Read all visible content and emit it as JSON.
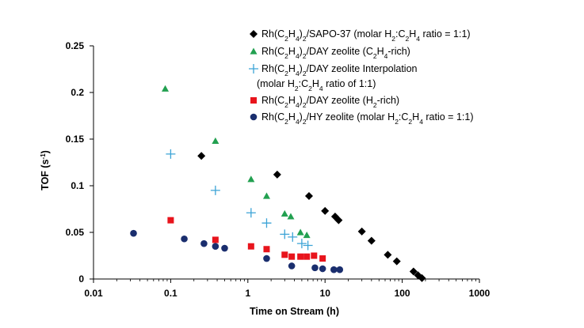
{
  "chart_data": {
    "type": "scatter",
    "title": "",
    "xlabel": "Time on Stream (h)",
    "ylabel": "TOF (s⁻¹)",
    "x_scale": "log",
    "xlim": [
      0.01,
      1000
    ],
    "ylim": [
      0,
      0.25
    ],
    "x_ticks": [
      "0.01",
      "0.1",
      "1",
      "10",
      "100",
      "1000"
    ],
    "y_ticks": [
      "0",
      "0.05",
      "0.1",
      "0.15",
      "0.2",
      "0.25"
    ],
    "grid": false,
    "legend_position": "top-right",
    "series": [
      {
        "name": "Rh(C₂H₄)₂/SAPO-37 (molar H₂:C₂H₄ ratio = 1:1)",
        "marker": "diamond",
        "color": "#000000",
        "points": [
          [
            0.25,
            0.132
          ],
          [
            2.4,
            0.112
          ],
          [
            6.2,
            0.089
          ],
          [
            10,
            0.073
          ],
          [
            13.5,
            0.067
          ],
          [
            15,
            0.063
          ],
          [
            30,
            0.051
          ],
          [
            40,
            0.041
          ],
          [
            65,
            0.026
          ],
          [
            85,
            0.019
          ],
          [
            140,
            0.008
          ],
          [
            160,
            0.004
          ],
          [
            180,
            0.001
          ]
        ]
      },
      {
        "name": "Rh(C₂H₄)₂/DAY zeolite (C₂H₄-rich)",
        "marker": "triangle",
        "color": "#22a050",
        "points": [
          [
            0.085,
            0.204
          ],
          [
            0.38,
            0.148
          ],
          [
            1.1,
            0.107
          ],
          [
            1.75,
            0.089
          ],
          [
            3,
            0.07
          ],
          [
            3.6,
            0.067
          ],
          [
            4.8,
            0.05
          ],
          [
            5.8,
            0.047
          ]
        ]
      },
      {
        "name": "Rh(C₂H₄)₂/DAY zeolite Interpolation",
        "marker": "plus",
        "color": "#3ba3d6",
        "points": [
          [
            0.1,
            0.134
          ],
          [
            0.38,
            0.095
          ],
          [
            1.1,
            0.071
          ],
          [
            1.75,
            0.06
          ],
          [
            3,
            0.048
          ],
          [
            3.8,
            0.045
          ],
          [
            5,
            0.038
          ],
          [
            6,
            0.036
          ]
        ]
      },
      {
        "name": "Rh(C₂H₄)₂/DAY zeolite (H₂-rich)",
        "marker": "square",
        "color": "#e8141c",
        "points": [
          [
            0.1,
            0.063
          ],
          [
            0.38,
            0.042
          ],
          [
            1.1,
            0.035
          ],
          [
            1.75,
            0.032
          ],
          [
            3,
            0.026
          ],
          [
            3.7,
            0.024
          ],
          [
            4.8,
            0.024
          ],
          [
            5.8,
            0.024
          ],
          [
            7.2,
            0.025
          ],
          [
            9.3,
            0.022
          ]
        ]
      },
      {
        "name": "Rh(C₂H₄)₂/HY zeolite (molar H₂:C₂H₄ ratio = 1:1)",
        "marker": "circle",
        "color": "#1a2e6e",
        "points": [
          [
            0.033,
            0.049
          ],
          [
            0.15,
            0.043
          ],
          [
            0.27,
            0.038
          ],
          [
            0.38,
            0.035
          ],
          [
            0.5,
            0.033
          ],
          [
            1.75,
            0.022
          ],
          [
            3.7,
            0.014
          ],
          [
            7.4,
            0.012
          ],
          [
            9.3,
            0.011
          ],
          [
            13,
            0.01
          ],
          [
            15.5,
            0.01
          ]
        ]
      }
    ]
  },
  "legend": {
    "entries": [
      {
        "parts": [
          "Rh(C",
          "2",
          "H",
          "4",
          ")",
          "2",
          "/SAPO-37 (molar H",
          "2",
          ":C",
          "2",
          "H",
          "4",
          " ratio = 1:1)"
        ]
      },
      {
        "parts": [
          "Rh(C",
          "2",
          "H",
          "4",
          ")",
          "2",
          "/DAY zeolite (C",
          "2",
          "H",
          "4",
          "-rich)"
        ]
      },
      {
        "parts": [
          "Rh(C",
          "2",
          "H",
          "4",
          ")",
          "2",
          "/DAY zeolite Interpolation"
        ]
      },
      {
        "parts": [
          "(molar H",
          "2",
          ":C",
          "2",
          "H",
          "4",
          " ratio of 1:1)"
        ]
      },
      {
        "parts": [
          "Rh(C",
          "2",
          "H",
          "4",
          ")",
          "2",
          "/DAY zeolite (H",
          "2",
          "-rich)"
        ]
      },
      {
        "parts": [
          "Rh(C",
          "2",
          "H",
          "4",
          ")",
          "2",
          "/HY zeolite (molar H",
          "2",
          ":C",
          "2",
          "H",
          "4",
          " ratio = 1:1)"
        ]
      }
    ]
  }
}
